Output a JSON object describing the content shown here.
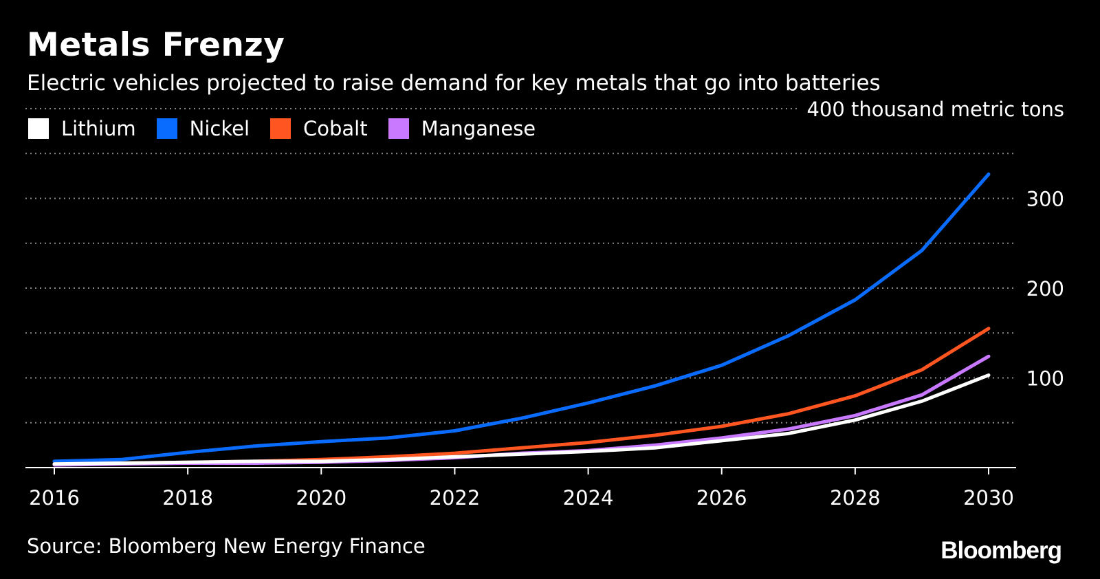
{
  "header": {
    "title": "Metals Frenzy",
    "subtitle": "Electric vehicles projected to raise demand for key metals that go into batteries"
  },
  "footer": {
    "source": "Source: Bloomberg New Energy Finance",
    "logo": "Bloomberg"
  },
  "chart_data": {
    "type": "line",
    "title": "Metals Frenzy",
    "subtitle": "Electric vehicles projected to raise demand for key metals that go into batteries",
    "xlabel": "",
    "ylabel": "400 thousand metric tons",
    "x": [
      2016,
      2017,
      2018,
      2019,
      2020,
      2021,
      2022,
      2023,
      2024,
      2025,
      2026,
      2027,
      2028,
      2029,
      2030
    ],
    "x_ticks": [
      "2016",
      "2018",
      "2020",
      "2022",
      "2024",
      "2026",
      "2028",
      "2030"
    ],
    "ylim": [
      0,
      400
    ],
    "y_ticks": [
      {
        "value": 400,
        "label": "400 thousand metric tons"
      },
      {
        "value": 300,
        "label": "300"
      },
      {
        "value": 200,
        "label": "200"
      },
      {
        "value": 100,
        "label": "100"
      }
    ],
    "gridlines": [
      50,
      100,
      150,
      200,
      250,
      300,
      350,
      400
    ],
    "grid": true,
    "legend_placement": "top-left",
    "series": [
      {
        "name": "Lithium",
        "color": "#ffffff",
        "values": [
          4,
          5,
          6,
          7,
          7,
          9,
          12,
          15,
          18,
          22,
          30,
          38,
          53,
          74,
          103
        ]
      },
      {
        "name": "Nickel",
        "color": "#0a6cff",
        "values": [
          7,
          9,
          17,
          24,
          29,
          33,
          41,
          55,
          72,
          91,
          114,
          147,
          187,
          242,
          327
        ]
      },
      {
        "name": "Cobalt",
        "color": "#ff5520",
        "values": [
          4,
          5,
          6,
          7,
          9,
          12,
          16,
          22,
          28,
          36,
          46,
          60,
          80,
          109,
          155
        ]
      },
      {
        "name": "Manganese",
        "color": "#c879ff",
        "values": [
          3,
          4,
          5,
          5,
          6,
          8,
          11,
          16,
          19,
          25,
          33,
          43,
          58,
          81,
          124
        ]
      }
    ]
  }
}
